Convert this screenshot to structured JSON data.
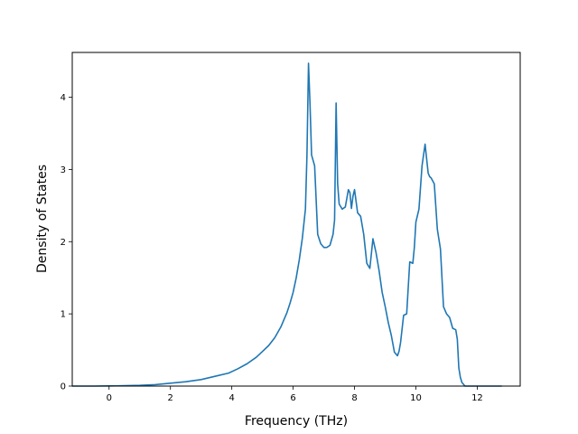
{
  "chart_data": {
    "type": "line",
    "title": "",
    "xlabel": "Frequency (THz)",
    "ylabel": "Density of States",
    "xlim": [
      -1.2,
      13.4
    ],
    "ylim": [
      0,
      4.62
    ],
    "xticks": [
      0,
      2,
      4,
      6,
      8,
      10,
      12
    ],
    "yticks": [
      0,
      1,
      2,
      3,
      4
    ],
    "grid": false,
    "line_color": "#1f77b4",
    "series": [
      {
        "x": [
          -1.2,
          -0.5,
          0,
          0.5,
          1.0,
          1.5,
          2.0,
          2.5,
          3.0,
          3.5,
          3.9,
          4.2,
          4.5,
          4.8,
          5.0,
          5.2,
          5.4,
          5.6,
          5.8,
          5.9,
          6.0,
          6.1,
          6.2,
          6.3,
          6.4,
          6.45,
          6.5,
          6.55,
          6.6,
          6.7,
          6.8,
          6.9,
          7.0,
          7.1,
          7.2,
          7.3,
          7.35,
          7.4,
          7.45,
          7.5,
          7.6,
          7.7,
          7.8,
          7.85,
          7.9,
          7.95,
          8.0,
          8.1,
          8.2,
          8.3,
          8.35,
          8.4,
          8.5,
          8.6,
          8.7,
          8.8,
          8.9,
          9.0,
          9.1,
          9.2,
          9.3,
          9.4,
          9.45,
          9.5,
          9.6,
          9.7,
          9.8,
          9.9,
          9.95,
          10.0,
          10.1,
          10.2,
          10.3,
          10.4,
          10.45,
          10.5,
          10.6,
          10.7,
          10.8,
          10.9,
          11.0,
          11.1,
          11.2,
          11.3,
          11.35,
          11.4,
          11.45,
          11.5,
          11.6,
          11.8,
          12.2,
          12.8
        ],
        "y": [
          0,
          0,
          0.002,
          0.005,
          0.01,
          0.02,
          0.04,
          0.06,
          0.09,
          0.14,
          0.18,
          0.24,
          0.31,
          0.4,
          0.48,
          0.56,
          0.67,
          0.82,
          1.02,
          1.15,
          1.3,
          1.5,
          1.75,
          2.05,
          2.45,
          3.2,
          4.47,
          3.9,
          3.2,
          3.05,
          2.1,
          1.97,
          1.92,
          1.92,
          1.95,
          2.1,
          2.3,
          3.92,
          2.8,
          2.52,
          2.45,
          2.48,
          2.72,
          2.68,
          2.46,
          2.63,
          2.72,
          2.4,
          2.35,
          2.1,
          1.9,
          1.7,
          1.63,
          2.04,
          1.85,
          1.6,
          1.3,
          1.1,
          0.88,
          0.7,
          0.47,
          0.42,
          0.48,
          0.6,
          0.98,
          1.0,
          1.72,
          1.7,
          1.92,
          2.27,
          2.45,
          3.05,
          3.35,
          2.95,
          2.9,
          2.88,
          2.8,
          2.17,
          1.9,
          1.1,
          1.0,
          0.95,
          0.8,
          0.78,
          0.65,
          0.25,
          0.12,
          0.05,
          0,
          0,
          0,
          0
        ]
      }
    ]
  }
}
